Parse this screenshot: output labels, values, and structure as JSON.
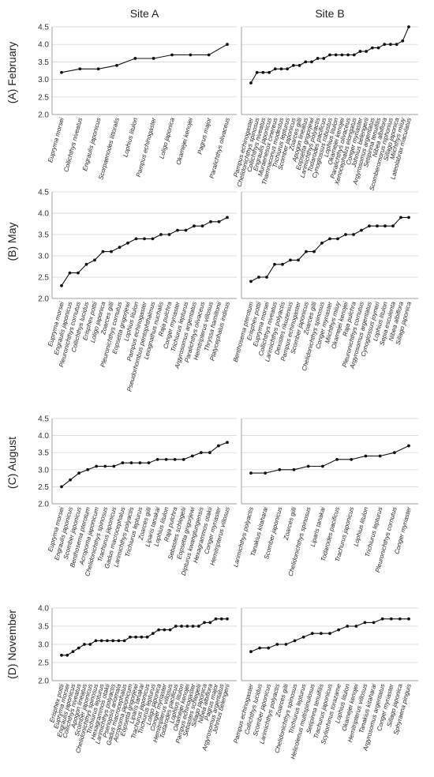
{
  "columns": [
    "Site A",
    "Site B"
  ],
  "rows": [
    "(A) February",
    "(B) May",
    "(C) August",
    "(D) November"
  ],
  "chart_data": [
    {
      "type": "line",
      "site": "Site A",
      "month": "(A) February",
      "ylim": [
        2.0,
        4.5
      ],
      "yticks": [
        "2.0",
        "2.5",
        "3.0",
        "3.5",
        "4.0",
        "4.5"
      ],
      "grid": "horizontal",
      "categories": [
        "Eupryma morsei",
        "Collichthys niveatus",
        "Engraulis japonicus",
        "Scorpaenodes littoralis",
        "Lophius litulon",
        "Pampus echinogaster",
        "Loligo japonica",
        "Okamejei kenojei",
        "Pagrus major",
        "Paralichthys olivaceus"
      ],
      "values": [
        3.2,
        3.3,
        3.3,
        3.4,
        3.6,
        3.6,
        3.7,
        3.7,
        3.7,
        4.0
      ]
    },
    {
      "type": "line",
      "site": "Site B",
      "month": "(A) February",
      "ylim": [
        2.0,
        4.5
      ],
      "yticks": [
        "2.0",
        "2.5",
        "3.0",
        "3.5",
        "4.0",
        "4.5"
      ],
      "grid": "horizontal",
      "categories": [
        "Pampus echinogaster",
        "Chelidonichthys spinosus",
        "Collichthys niveatus",
        "Engraulis japonicus",
        "Muraenesox cinereus",
        "Thamnaconus modestus",
        "Trichiurus lepturus",
        "Scomber japonicus",
        "Zoarces gilli",
        "Apogon lineatus",
        "Eopsetta grigorjewi",
        "Larimichthys polyactis",
        "Todarodes pacificus",
        "Cynoglossus robustus",
        "Lophius litulon",
        "Okamejei kenojei",
        "Paralichthys olivaceus",
        "Xenocephalus elongatus",
        "Conger myriaster",
        "Johnius belengerii",
        "Argyrosomus argentatus",
        "Setipinna tenuifilis",
        "Nibea albiflora",
        "Scomberomorus niphonius",
        "Sillago japonica",
        "Miichthys miiuy",
        "Lateolabrax maculatus"
      ],
      "values": [
        2.9,
        3.2,
        3.2,
        3.2,
        3.3,
        3.3,
        3.3,
        3.4,
        3.4,
        3.5,
        3.5,
        3.6,
        3.6,
        3.7,
        3.7,
        3.7,
        3.7,
        3.7,
        3.8,
        3.8,
        3.9,
        3.9,
        4.0,
        4.0,
        4.0,
        4.1,
        4.5
      ]
    },
    {
      "type": "line",
      "site": "Site A",
      "month": "(B) May",
      "ylim": [
        2.0,
        4.5
      ],
      "yticks": [
        "2.0",
        "2.5",
        "3.0",
        "3.5",
        "4.0",
        "4.5"
      ],
      "grid": "horizontal",
      "categories": [
        "Eupryma morsei",
        "Engraulis japonicus",
        "Pleuronichthys cornutus",
        "Collichthys lucidus",
        "Erisphex pottii",
        "Loligo japonica",
        "Zoarces gilli",
        "Pleuronichthys cornutus",
        "Eopsetta grigorjewi",
        "Lophius litulon",
        "Pampus echinogaster",
        "Pseudorhombus pentophthalmus",
        "Leiognathus nuchalis",
        "Raja pulchra",
        "Conger myriaster",
        "Trichiurus lepturus",
        "Argyrosomus argentatus",
        "Paralichthys olivaceus",
        "Hemitripterus villosus",
        "Thryssa hamiltonii",
        "Platycephalus indicus"
      ],
      "values": [
        2.3,
        2.6,
        2.6,
        2.8,
        2.9,
        3.1,
        3.1,
        3.2,
        3.3,
        3.4,
        3.4,
        3.4,
        3.5,
        3.5,
        3.6,
        3.6,
        3.7,
        3.7,
        3.8,
        3.8,
        3.9
      ]
    },
    {
      "type": "line",
      "site": "Site B",
      "month": "(B) May",
      "ylim": [
        2.0,
        4.5
      ],
      "yticks": [
        "2.0",
        "2.5",
        "3.0",
        "3.5",
        "4.0",
        "4.5"
      ],
      "grid": "horizontal",
      "categories": [
        "Benthosema pterotum",
        "Erisphex pottii",
        "Eupryma morsei",
        "Collichthys niveatus",
        "Larimichthys polyactis",
        "Dexistes rikuzenius",
        "Pampus echinogaster",
        "Scomber japonicus",
        "Zoarces gilli",
        "Chelidonichthys spinosus",
        "Conger myriaster",
        "Miichthys miiuy",
        "Okamejei kenojei",
        "Raja pulchra",
        "Pleuronichthys cornutus",
        "Argyrosomus argentatus",
        "Cynoglossus joyneri",
        "Lophius litulon",
        "Sepia esculenta",
        "Nibea albiflora",
        "Sillago japonica"
      ],
      "values": [
        2.4,
        2.5,
        2.5,
        2.8,
        2.8,
        2.9,
        2.9,
        3.1,
        3.1,
        3.3,
        3.4,
        3.4,
        3.5,
        3.5,
        3.6,
        3.7,
        3.7,
        3.7,
        3.7,
        3.9,
        3.9
      ]
    },
    {
      "type": "line",
      "site": "Site A",
      "month": "(C) August",
      "ylim": [
        2.0,
        4.5
      ],
      "yticks": [
        "2.0",
        "2.5",
        "3.0",
        "3.5",
        "4.0",
        "4.5"
      ],
      "grid": "horizontal",
      "categories": [
        "Eupryma morsei",
        "Engraulis japonicus",
        "Scomber japonicus",
        "Benthosema pterotum",
        "Acropoma japonicum",
        "Chelidonichthys spinosus",
        "Trachurus japonicus",
        "Gadus macrocephalus",
        "Larimichthys polyactis",
        "Trichiurus lepturus",
        "Zoarces gilli",
        "Liparis tanakai",
        "Lophius litulon",
        "Raja pulchra",
        "Sebastes schlegelii",
        "Eopsetta grigorjewi",
        "Dipturus kwangtungensis",
        "Hexagrammos otakii",
        "Conger myriaster",
        "Hemitripterus villosus"
      ],
      "values": [
        2.5,
        2.7,
        2.9,
        3.0,
        3.1,
        3.1,
        3.1,
        3.2,
        3.2,
        3.2,
        3.2,
        3.3,
        3.3,
        3.3,
        3.3,
        3.4,
        3.5,
        3.5,
        3.7,
        3.8
      ]
    },
    {
      "type": "line",
      "site": "Site B",
      "month": "(C) August",
      "ylim": [
        2.0,
        4.5
      ],
      "yticks": [
        "2.0",
        "2.5",
        "3.0",
        "3.5",
        "4.0",
        "4.5"
      ],
      "grid": "horizontal",
      "categories": [
        "Larimichthys polyactis",
        "Tanakius kitaharai",
        "Scomber japonicus",
        "Zoarces gilli",
        "Chelidonichthys spinosus",
        "Liparis tanakai",
        "Todarodes pacificus",
        "Trachurus japonicus",
        "Lophius litulon",
        "Trichiurus lepturus",
        "Pleuronichthys cornutus",
        "Conger myriaster"
      ],
      "values": [
        2.9,
        2.9,
        3.0,
        3.0,
        3.1,
        3.1,
        3.3,
        3.3,
        3.4,
        3.4,
        3.5,
        3.7
      ]
    },
    {
      "type": "line",
      "site": "Site A",
      "month": "(D) November",
      "ylim": [
        2.0,
        4.0
      ],
      "yticks": [
        "2.0",
        "2.5",
        "3.0",
        "3.5",
        "4.0"
      ],
      "grid": "horizontal",
      "categories": [
        "Erisphex pottii",
        "Eupryma morsei",
        "Engraulis japonicus",
        "Collichthys niveatus",
        "Apogon lineatus",
        "Scomber japonicus",
        "Chelidonichthys spinosus",
        "Trichiurus lepturus",
        "Hexagrammos otakii",
        "Larimichthys polyactis",
        "Psenopsis anomala",
        "Gadus macrocephalus",
        "Acropoma japonicum",
        "Eopsetta grigorjewi",
        "Liparis tanakai",
        "Trachurus japonicus",
        "Trichiurus lepturus",
        "Loligo japonica",
        "Conger myriaster",
        "Hemitripterus villosus",
        "Todarodes pacificus",
        "Lophius litulon",
        "Okamejei kenojei",
        "Pampus echinogaster",
        "Sebastes schlegelii",
        "Sillago japonica",
        "Nibea albiflora",
        "Pagrus major",
        "Argyrosomus argentatus",
        "Johnius belengerii"
      ],
      "values": [
        2.7,
        2.7,
        2.8,
        2.9,
        3.0,
        3.0,
        3.1,
        3.1,
        3.1,
        3.1,
        3.1,
        3.1,
        3.2,
        3.2,
        3.2,
        3.2,
        3.3,
        3.4,
        3.4,
        3.4,
        3.5,
        3.5,
        3.5,
        3.5,
        3.5,
        3.6,
        3.6,
        3.7,
        3.7,
        3.7
      ]
    },
    {
      "type": "line",
      "site": "Site B",
      "month": "(D) November",
      "ylim": [
        2.0,
        4.0
      ],
      "yticks": [
        "2.0",
        "2.5",
        "3.0",
        "3.5",
        "4.0"
      ],
      "grid": "horizontal",
      "categories": [
        "Pampus echinogaster",
        "Collichthys lucidus",
        "Scomber japonicus",
        "Larimichthys polyactis",
        "Zoarces gilli",
        "Chelidonichthys spinosus",
        "Trichiurus lepturus",
        "Helicolenus multispinulosus",
        "Setipinna tenuifilis",
        "Trachurus japonicus",
        "Scyliorhinus torazame",
        "Lophius litulon",
        "Okamejei kenojei",
        "Hemitripterus villosus",
        "Tanakius kitaharai",
        "Argyrosomus argentatus",
        "Conger myriaster",
        "Sillago japonica",
        "Sphyraena pinguis"
      ],
      "values": [
        2.8,
        2.9,
        2.9,
        3.0,
        3.0,
        3.1,
        3.2,
        3.3,
        3.3,
        3.3,
        3.4,
        3.5,
        3.5,
        3.6,
        3.6,
        3.7,
        3.7,
        3.7,
        3.7
      ]
    }
  ]
}
